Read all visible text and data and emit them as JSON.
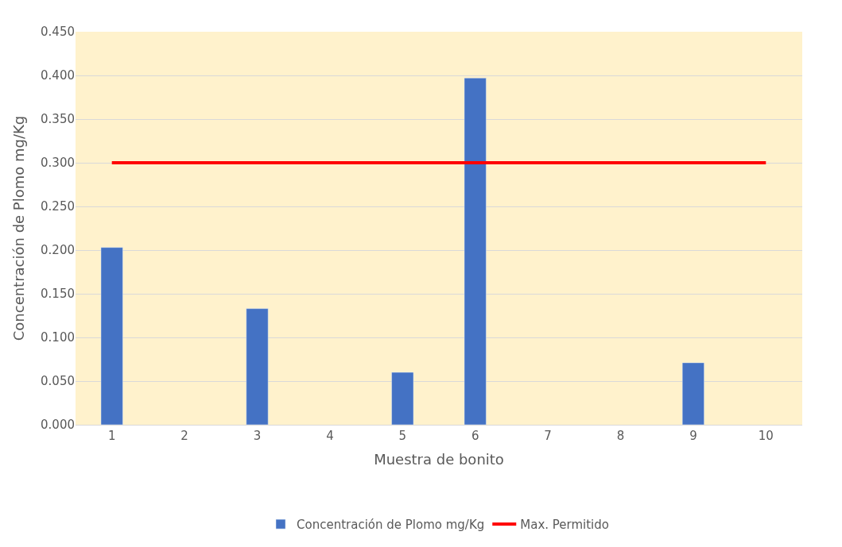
{
  "chart_data": {
    "type": "bar",
    "xlabel": "Muestra de bonito",
    "ylabel": "Concentración de Plomo mg/Kg",
    "categories": [
      "1",
      "2",
      "3",
      "4",
      "5",
      "6",
      "7",
      "8",
      "9",
      "10"
    ],
    "series": [
      {
        "name": "Concentración de Plomo mg/Kg",
        "color": "#4472c4",
        "values": [
          0.203,
          null,
          0.133,
          null,
          0.06,
          0.397,
          null,
          null,
          0.071,
          null
        ]
      },
      {
        "name": "Max. Permitido",
        "type": "line",
        "color": "#ff0000",
        "values": [
          0.3,
          0.3,
          0.3,
          0.3,
          0.3,
          0.3,
          0.3,
          0.3,
          0.3,
          0.3
        ]
      }
    ],
    "ylim": [
      0,
      0.45
    ],
    "yticks": [
      {
        "value": 0,
        "label": "0.000"
      },
      {
        "value": 0.05,
        "label": "0.050"
      },
      {
        "value": 0.1,
        "label": "0.100"
      },
      {
        "value": 0.15,
        "label": "0.150"
      },
      {
        "value": 0.2,
        "label": "0.200"
      },
      {
        "value": 0.25,
        "label": "0.250"
      },
      {
        "value": 0.3,
        "label": "0.300"
      },
      {
        "value": 0.35,
        "label": "0.350"
      },
      {
        "value": 0.4,
        "label": "0.400"
      },
      {
        "value": 0.45,
        "label": "0.450"
      }
    ],
    "grid": "y",
    "legend": "bottom",
    "marker": "none",
    "line_style": "solid"
  }
}
